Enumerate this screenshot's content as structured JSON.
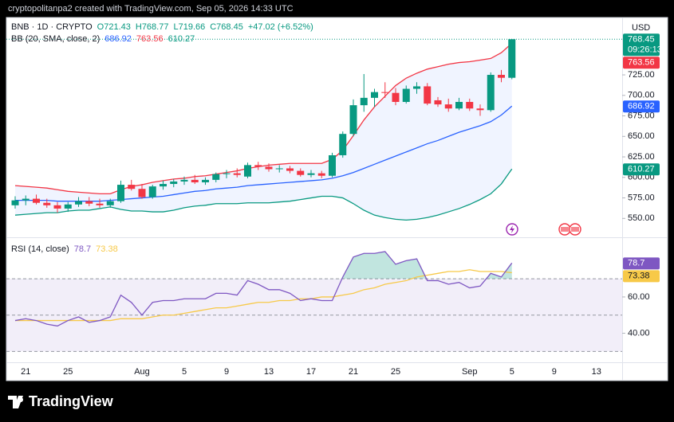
{
  "header": "cryptopolitanpa2 created with TradingView.com, Sep 05, 2026 14:33 UTC",
  "brand": "TradingView",
  "chart_data": [
    {
      "type": "candlestick",
      "symbol": "BNB · 1D · CRYPTO",
      "ohlc_legend": [
        "O721.43",
        "H768.77",
        "L719.66",
        "C768.45",
        "+47.02 (+6.52%)"
      ],
      "indicator": "BB (20, SMA, close, 2)",
      "currency": "USD",
      "countdown": "09:26:13",
      "up_color": "#089981",
      "down_color": "#f23645",
      "categories": [
        null,
        "21",
        null,
        null,
        null,
        "25",
        null,
        null,
        null,
        null,
        null,
        null,
        "Aug",
        null,
        null,
        null,
        "5",
        null,
        null,
        null,
        "9",
        null,
        null,
        null,
        "13",
        null,
        null,
        null,
        "17",
        null,
        null,
        null,
        "21",
        null,
        null,
        null,
        "25",
        null,
        null,
        null,
        null,
        null,
        null,
        "Sep",
        null,
        null,
        null,
        "5",
        null,
        null,
        null,
        "9",
        null,
        null,
        null,
        "13",
        null,
        null
      ],
      "open": [
        566,
        572,
        574,
        569,
        566,
        562,
        567,
        571,
        568,
        566,
        571,
        591,
        586,
        576,
        589,
        592,
        595,
        597,
        594,
        597,
        604,
        605,
        601,
        615,
        613,
        610,
        611,
        608,
        603,
        605,
        602,
        627,
        653,
        688,
        697,
        704,
        703,
        692,
        708,
        711,
        694,
        689,
        684,
        692,
        684,
        682,
        725,
        721.43,
        null,
        null,
        null,
        null,
        null,
        null,
        null,
        null,
        null,
        null
      ],
      "high": [
        577,
        578,
        579,
        574,
        570,
        570,
        576,
        576,
        574,
        574,
        596,
        597,
        592,
        591,
        596,
        598,
        601,
        603,
        600,
        606,
        609,
        611,
        618,
        619,
        617,
        615,
        614,
        611,
        609,
        608,
        630,
        656,
        695,
        726,
        708,
        716,
        709,
        712,
        716,
        715,
        698,
        696,
        697,
        696,
        689,
        728,
        731,
        768.77,
        null,
        null,
        null,
        null,
        null,
        null,
        null,
        null,
        null,
        null
      ],
      "low": [
        562,
        566,
        567,
        563,
        557,
        558,
        564,
        565,
        563,
        563,
        569,
        584,
        574,
        574,
        585,
        588,
        591,
        592,
        591,
        594,
        599,
        600,
        599,
        609,
        607,
        606,
        605,
        601,
        600,
        599,
        600,
        624,
        650,
        680,
        686,
        697,
        688,
        690,
        702,
        688,
        686,
        680,
        682,
        681,
        675,
        680,
        716,
        719.66,
        null,
        null,
        null,
        null,
        null,
        null,
        null,
        null,
        null,
        null
      ],
      "close": [
        572,
        574,
        569,
        566,
        562,
        567,
        571,
        568,
        566,
        571,
        591,
        586,
        576,
        589,
        592,
        595,
        597,
        594,
        597,
        604,
        605,
        603,
        615,
        613,
        610,
        611,
        608,
        603,
        605,
        602,
        627,
        653,
        688,
        697,
        704,
        703,
        692,
        708,
        711,
        690,
        689,
        684,
        692,
        684,
        682,
        725,
        721.43,
        768.45,
        null,
        null,
        null,
        null,
        null,
        null,
        null,
        null,
        null,
        null
      ],
      "series": [
        {
          "color": "#2962ff",
          "values": [
            572,
            572,
            572,
            572,
            571,
            571,
            571,
            571,
            571,
            572,
            573,
            574,
            575,
            576,
            577,
            579,
            581,
            583,
            584,
            586,
            587,
            588,
            590,
            591,
            592,
            593,
            594,
            595,
            596,
            597,
            599,
            602,
            606,
            611,
            616,
            621,
            626,
            631,
            636,
            641,
            645,
            650,
            655,
            659,
            663,
            668,
            676,
            686.92,
            null,
            null,
            null,
            null,
            null,
            null,
            null,
            null,
            null,
            null
          ]
        },
        {
          "color": "#f23645",
          "values": [
            590,
            589,
            588,
            587,
            585,
            583,
            582,
            581,
            580,
            580,
            585,
            589,
            591,
            594,
            596,
            598,
            599,
            601,
            602,
            604,
            606,
            608,
            611,
            613,
            615,
            616,
            617,
            617,
            617,
            617,
            622,
            633,
            651,
            670,
            686,
            699,
            712,
            721,
            727,
            732,
            735,
            738,
            740,
            741,
            743,
            745,
            752,
            763.56,
            null,
            null,
            null,
            null,
            null,
            null,
            null,
            null,
            null,
            null
          ]
        },
        {
          "color": "#089981",
          "values": [
            554,
            555,
            556,
            557,
            557,
            559,
            560,
            560,
            562,
            564,
            561,
            559,
            559,
            558,
            558,
            560,
            563,
            565,
            566,
            568,
            568,
            568,
            569,
            569,
            569,
            570,
            571,
            573,
            575,
            577,
            577,
            575,
            568,
            560,
            554,
            551,
            549,
            548,
            549,
            551,
            554,
            558,
            562,
            567,
            573,
            580,
            592,
            610.27,
            null,
            null,
            null,
            null,
            null,
            null,
            null,
            null,
            null,
            null
          ]
        }
      ],
      "ylim": [
        527,
        792
      ],
      "yticks": [
        {
          "value": 550,
          "label": "550.00"
        },
        {
          "value": 575,
          "label": "575.00"
        },
        {
          "value": 600,
          "label": "600.00"
        },
        {
          "value": 625,
          "label": "625.00"
        },
        {
          "value": 650,
          "label": "650.00"
        },
        {
          "value": 675,
          "label": "675.00"
        },
        {
          "value": 700,
          "label": "700.00"
        },
        {
          "value": 725,
          "label": "725.00"
        }
      ]
    },
    {
      "type": "line",
      "title": "RSI (14, close)",
      "band_color": "#7e57c2",
      "overbought_fill": "#089981",
      "series": [
        {
          "color": "#7e57c2",
          "values": [
            47,
            48,
            47,
            45,
            44,
            47,
            49,
            46,
            47,
            49,
            61,
            57,
            50,
            57,
            58,
            58,
            59,
            59,
            59,
            62,
            62,
            61,
            69,
            67,
            64,
            64,
            62,
            58,
            59,
            58,
            58,
            71,
            82,
            84,
            84,
            85,
            78,
            80,
            81,
            69,
            69,
            67,
            68,
            65,
            66,
            73,
            71,
            78.7,
            null,
            null,
            null,
            null,
            null,
            null,
            null,
            null,
            null,
            null
          ]
        },
        {
          "color": "#f7c948",
          "values": [
            47,
            47,
            47,
            47,
            47,
            47,
            47,
            47,
            47,
            47,
            48,
            48,
            48,
            49,
            50,
            50,
            51,
            52,
            53,
            54,
            54,
            55,
            56,
            57,
            57,
            58,
            58,
            59,
            59,
            60,
            60,
            61,
            62,
            64,
            65,
            67,
            68,
            69,
            71,
            72,
            73,
            74,
            74,
            75,
            74,
            74,
            74,
            73.38,
            null,
            null,
            null,
            null,
            null,
            null,
            null,
            null,
            null,
            null
          ]
        }
      ],
      "levels": [
        70,
        50,
        30
      ],
      "ylim": [
        24,
        92
      ],
      "yticks": [
        {
          "value": 40,
          "label": "40.00"
        },
        {
          "value": 60,
          "label": "60.00"
        }
      ]
    }
  ]
}
